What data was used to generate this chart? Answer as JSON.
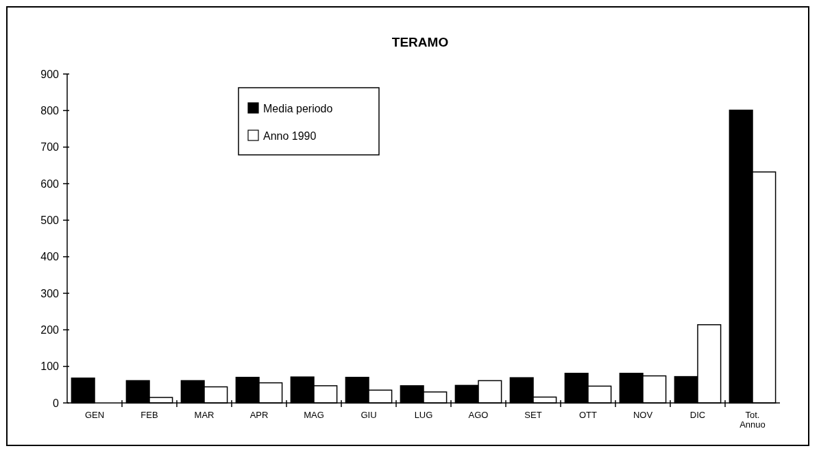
{
  "chart_data": {
    "type": "bar",
    "title": "TERAMO",
    "categories": [
      "GEN",
      "FEB",
      "MAR",
      "APR",
      "MAG",
      "GIU",
      "LUG",
      "AGO",
      "SET",
      "OTT",
      "NOV",
      "DIC",
      "Tot.\nAnnuo"
    ],
    "series": [
      {
        "name": "Media periodo",
        "color": "#000000",
        "values": [
          68,
          61,
          61,
          70,
          71,
          70,
          47,
          48,
          69,
          81,
          81,
          72,
          801
        ]
      },
      {
        "name": "Anno 1990",
        "color": "#ffffff",
        "values": [
          null,
          15,
          44,
          55,
          47,
          35,
          30,
          61,
          16,
          46,
          74,
          214,
          632
        ]
      }
    ],
    "ylim": [
      0,
      900
    ],
    "yticks": [
      0,
      100,
      200,
      300,
      400,
      500,
      600,
      700,
      800,
      900
    ],
    "grid": false,
    "legend": "top left"
  }
}
